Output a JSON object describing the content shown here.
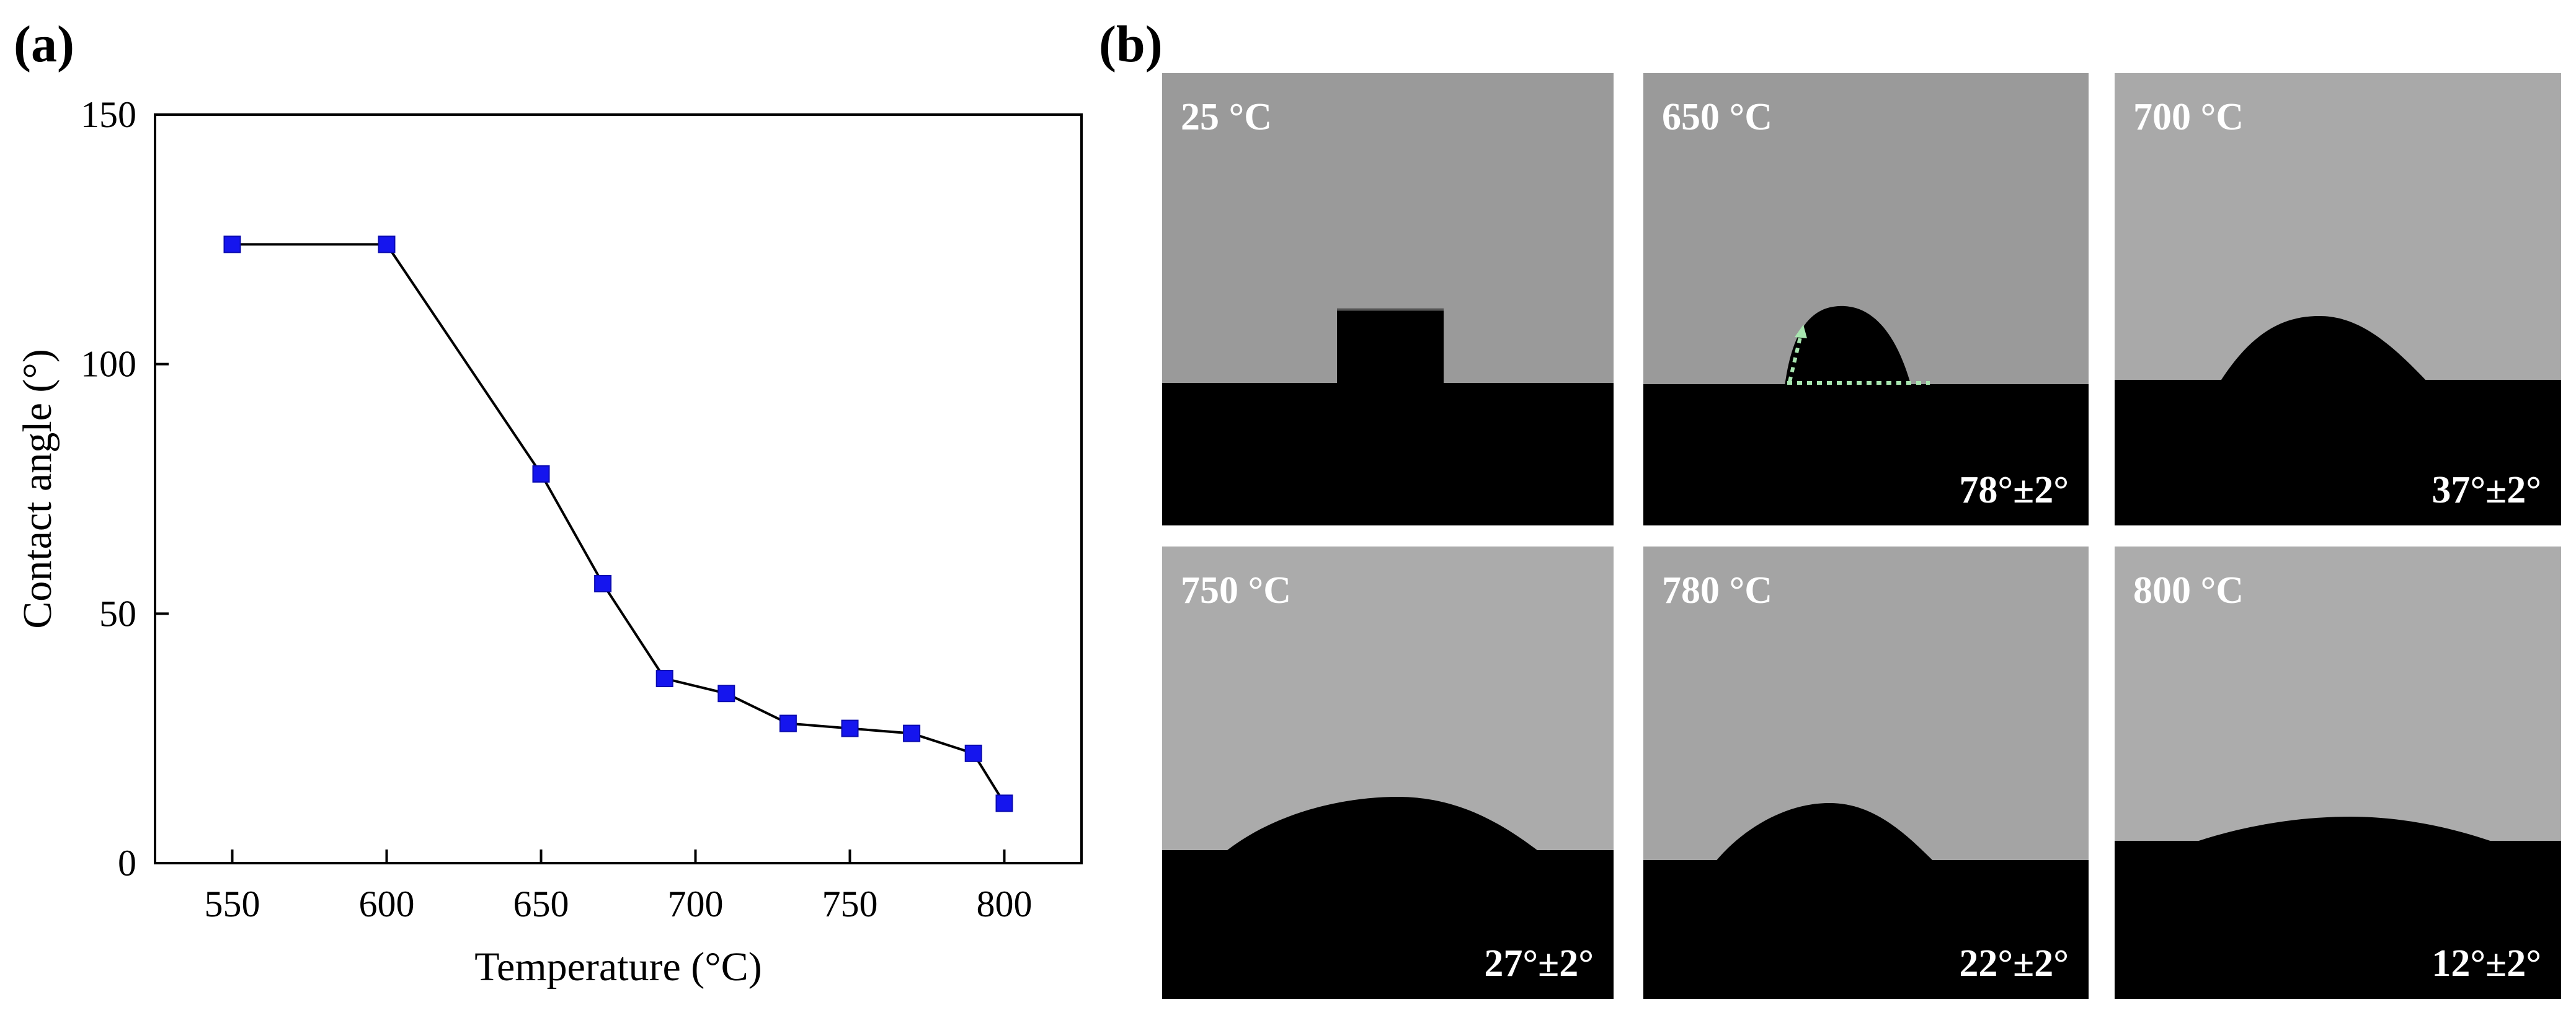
{
  "panels": {
    "a_label": "(a)",
    "b_label": "(b)"
  },
  "chart_data": {
    "type": "line",
    "xlabel": "Temperature (°C)",
    "ylabel": "Contact angle (°)",
    "xlim": [
      525,
      825
    ],
    "ylim": [
      0,
      150
    ],
    "xticks": [
      550,
      600,
      650,
      700,
      750,
      800
    ],
    "yticks": [
      0,
      50,
      100,
      150
    ],
    "grid": false,
    "marker": "square",
    "series": [
      {
        "color": "#1515ee",
        "line_color": "#000000",
        "x": [
          550,
          600,
          650,
          670,
          690,
          710,
          730,
          750,
          770,
          790,
          800
        ],
        "y": [
          124,
          124,
          78,
          56,
          37,
          34,
          28,
          27,
          26,
          22,
          12
        ]
      }
    ]
  },
  "photos": [
    {
      "temperature": "25 °C",
      "angle": "",
      "background": "#9a9a9a"
    },
    {
      "temperature": "650 °C",
      "angle": "78°±2°",
      "background": "#9a9a9a"
    },
    {
      "temperature": "700 °C",
      "angle": "37°±2°",
      "background": "#a9a9a9"
    },
    {
      "temperature": "750 °C",
      "angle": "27°±2°",
      "background": "#ababab"
    },
    {
      "temperature": "780 °C",
      "angle": "22°±2°",
      "background": "#a4a4a4"
    },
    {
      "temperature": "800 °C",
      "angle": "12°±2°",
      "background": "#acacac"
    }
  ],
  "colors": {
    "guide_line": "#a8e6b0",
    "substrate": "#000000"
  }
}
